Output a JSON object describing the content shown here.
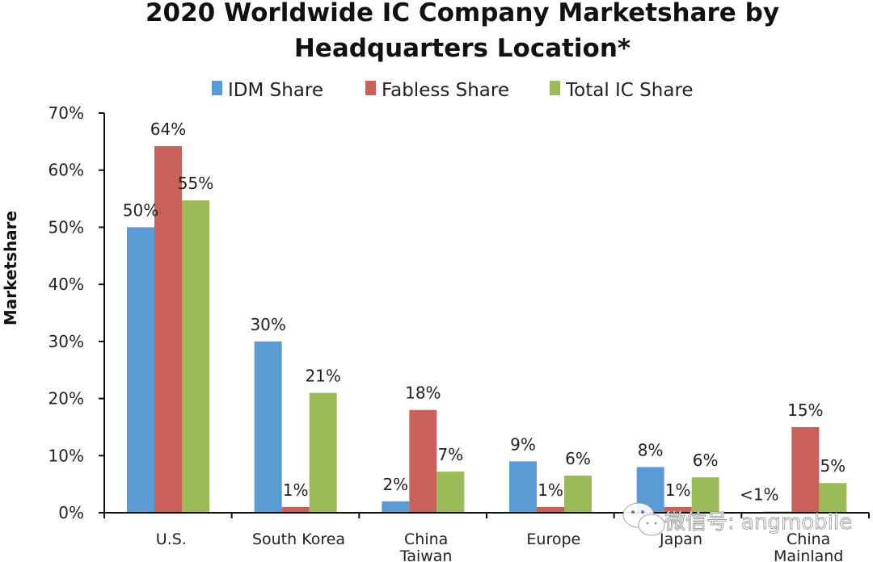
{
  "chart_data": {
    "type": "bar",
    "title_lines": [
      "2020 Worldwide IC Company Marketshare by",
      "Headquarters Location*"
    ],
    "xlabel": "",
    "ylabel": "Marketshare",
    "ylim": [
      0,
      70
    ],
    "yticks": [
      0,
      10,
      20,
      30,
      40,
      50,
      60,
      70
    ],
    "ytick_labels": [
      "0%",
      "10%",
      "20%",
      "30%",
      "40%",
      "50%",
      "60%",
      "70%"
    ],
    "grid": false,
    "legend_position": "top",
    "categories": [
      [
        "U.S."
      ],
      [
        "South Korea"
      ],
      [
        "China",
        "Taiwan"
      ],
      [
        "Europe"
      ],
      [
        "Japan"
      ],
      [
        "China",
        "Mainland"
      ]
    ],
    "series": [
      {
        "name": "IDM Share",
        "color": "#5b9bd5",
        "values": [
          50,
          30,
          2,
          9,
          8,
          0.2
        ],
        "labels": [
          "50%",
          "30%",
          "2%",
          "9%",
          "8%",
          "<1%"
        ]
      },
      {
        "name": "Fabless Share",
        "color": "#c9605a",
        "values": [
          64.2,
          1,
          18,
          1,
          1,
          15
        ],
        "labels": [
          "64%",
          "1%",
          "18%",
          "1%",
          "1%",
          "15%"
        ]
      },
      {
        "name": "Total IC Share",
        "color": "#9bbb59",
        "values": [
          54.7,
          21,
          7.2,
          6.5,
          6.2,
          5.2
        ],
        "labels": [
          "55%",
          "21%",
          "7%",
          "6%",
          "6%",
          "5%"
        ]
      }
    ]
  },
  "watermark": "微信号: angmobile"
}
